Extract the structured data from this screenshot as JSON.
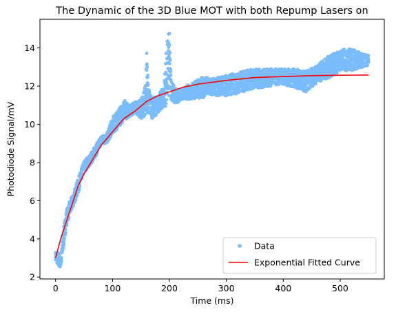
{
  "chart_data": {
    "type": "scatter",
    "title": "The Dynamic of the 3D Blue MOT with both Repump Lasers on",
    "xlabel": "Time (ms)",
    "ylabel": "Photodiode Signal/mV",
    "xlim": [
      -27.5,
      577.5
    ],
    "ylim": [
      1.9,
      15.5
    ],
    "xticks": [
      0,
      100,
      200,
      300,
      400,
      500
    ],
    "yticks": [
      2,
      4,
      6,
      8,
      10,
      12,
      14
    ],
    "xtick_labels": [
      "0",
      "100",
      "200",
      "300",
      "400",
      "500"
    ],
    "ytick_labels": [
      "2",
      "4",
      "6",
      "8",
      "10",
      "12",
      "14"
    ],
    "grid": false,
    "legend_position": "lower-right",
    "series": [
      {
        "name": "Data",
        "kind": "scatter",
        "color": "#7abcfc",
        "x_range": [
          0,
          550
        ],
        "band_envelope": {
          "x": [
            0,
            5,
            10,
            15,
            20,
            25,
            30,
            40,
            50,
            60,
            70,
            80,
            90,
            100,
            110,
            120,
            130,
            140,
            150,
            157,
            160,
            163,
            170,
            180,
            190,
            197,
            200,
            203,
            210,
            220,
            240,
            260,
            280,
            300,
            320,
            340,
            360,
            380,
            400,
            420,
            440,
            460,
            480,
            500,
            520,
            540,
            550
          ],
          "lo": [
            2.9,
            2.5,
            2.5,
            3.8,
            4.8,
            5.2,
            5.6,
            6.4,
            7.5,
            7.8,
            8.3,
            8.9,
            9.0,
            9.5,
            9.8,
            10.2,
            10.4,
            10.6,
            10.3,
            10.4,
            10.6,
            10.5,
            10.3,
            10.6,
            10.9,
            11.0,
            11.4,
            11.3,
            11.0,
            11.3,
            11.3,
            11.4,
            11.5,
            11.5,
            11.6,
            11.8,
            11.9,
            12.0,
            12.1,
            11.9,
            11.7,
            12.2,
            12.4,
            12.8,
            12.8,
            13.0,
            13.1
          ],
          "hi": [
            3.3,
            3.3,
            3.3,
            4.8,
            5.6,
            6.0,
            6.3,
            7.2,
            8.1,
            8.4,
            8.9,
            9.4,
            9.5,
            10.4,
            10.7,
            11.3,
            11.0,
            11.2,
            11.3,
            12.0,
            14.0,
            12.0,
            11.4,
            11.5,
            12.0,
            14.8,
            14.8,
            12.4,
            11.9,
            11.8,
            12.2,
            12.5,
            12.4,
            12.6,
            12.7,
            12.9,
            12.9,
            12.9,
            12.9,
            12.9,
            12.8,
            13.1,
            13.6,
            13.9,
            14.0,
            13.7,
            13.6
          ]
        }
      },
      {
        "name": "Exponential Fitted Curve",
        "kind": "line",
        "color": "#ff0000",
        "x": [
          0,
          10,
          20,
          30,
          40,
          50,
          60,
          80,
          100,
          120,
          140,
          160,
          180,
          200,
          225,
          250,
          275,
          300,
          350,
          400,
          450,
          500,
          550
        ],
        "y": [
          3.0,
          4.1,
          5.0,
          5.9,
          6.8,
          7.4,
          7.9,
          8.9,
          9.6,
          10.3,
          10.7,
          11.2,
          11.5,
          11.7,
          11.95,
          12.1,
          12.2,
          12.3,
          12.45,
          12.5,
          12.55,
          12.57,
          12.58
        ]
      }
    ]
  }
}
